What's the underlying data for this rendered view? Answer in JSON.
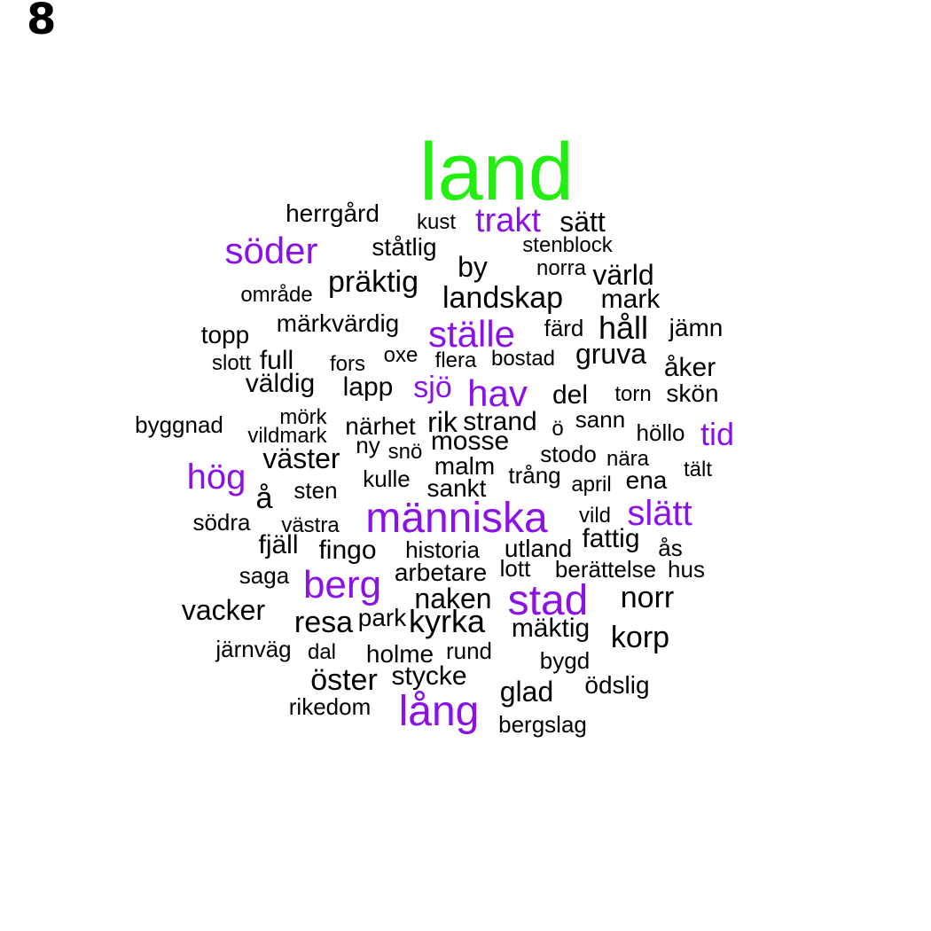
{
  "panel_label": "8",
  "colors": {
    "black": "#000000",
    "purple": "#8b12e6",
    "green": "#22ee11"
  },
  "words": [
    {
      "text": "land",
      "color": "green"
    },
    {
      "text": "herrgård",
      "color": "black"
    },
    {
      "text": "kust",
      "color": "black"
    },
    {
      "text": "trakt",
      "color": "purple"
    },
    {
      "text": "sätt",
      "color": "black"
    },
    {
      "text": "söder",
      "color": "purple"
    },
    {
      "text": "ståtlig",
      "color": "black"
    },
    {
      "text": "stenblock",
      "color": "black"
    },
    {
      "text": "by",
      "color": "black"
    },
    {
      "text": "norra",
      "color": "black"
    },
    {
      "text": "värld",
      "color": "black"
    },
    {
      "text": "område",
      "color": "black"
    },
    {
      "text": "präktig",
      "color": "black"
    },
    {
      "text": "landskap",
      "color": "black"
    },
    {
      "text": "mark",
      "color": "black"
    },
    {
      "text": "märkvärdig",
      "color": "black"
    },
    {
      "text": "ställe",
      "color": "purple"
    },
    {
      "text": "färd",
      "color": "black"
    },
    {
      "text": "håll",
      "color": "black"
    },
    {
      "text": "jämn",
      "color": "black"
    },
    {
      "text": "topp",
      "color": "black"
    },
    {
      "text": "slott",
      "color": "black"
    },
    {
      "text": "full",
      "color": "black"
    },
    {
      "text": "fors",
      "color": "black"
    },
    {
      "text": "oxe",
      "color": "black"
    },
    {
      "text": "flera",
      "color": "black"
    },
    {
      "text": "bostad",
      "color": "black"
    },
    {
      "text": "gruva",
      "color": "black"
    },
    {
      "text": "åker",
      "color": "black"
    },
    {
      "text": "väldig",
      "color": "black"
    },
    {
      "text": "lapp",
      "color": "black"
    },
    {
      "text": "sjö",
      "color": "purple"
    },
    {
      "text": "hav",
      "color": "purple"
    },
    {
      "text": "del",
      "color": "black"
    },
    {
      "text": "torn",
      "color": "black"
    },
    {
      "text": "skön",
      "color": "black"
    },
    {
      "text": "byggnad",
      "color": "black"
    },
    {
      "text": "mörk",
      "color": "black"
    },
    {
      "text": "närhet",
      "color": "black"
    },
    {
      "text": "rik",
      "color": "black"
    },
    {
      "text": "strand",
      "color": "black"
    },
    {
      "text": "ö",
      "color": "black"
    },
    {
      "text": "sann",
      "color": "black"
    },
    {
      "text": "höllo",
      "color": "black"
    },
    {
      "text": "tid",
      "color": "purple"
    },
    {
      "text": "vildmark",
      "color": "black"
    },
    {
      "text": "ny",
      "color": "black"
    },
    {
      "text": "mosse",
      "color": "black"
    },
    {
      "text": "väster",
      "color": "black"
    },
    {
      "text": "snö",
      "color": "black"
    },
    {
      "text": "stodo",
      "color": "black"
    },
    {
      "text": "nära",
      "color": "black"
    },
    {
      "text": "hög",
      "color": "purple"
    },
    {
      "text": "malm",
      "color": "black"
    },
    {
      "text": "tält",
      "color": "black"
    },
    {
      "text": "trång",
      "color": "black"
    },
    {
      "text": "kulle",
      "color": "black"
    },
    {
      "text": "ena",
      "color": "black"
    },
    {
      "text": "april",
      "color": "black"
    },
    {
      "text": "å",
      "color": "black"
    },
    {
      "text": "sten",
      "color": "black"
    },
    {
      "text": "sankt",
      "color": "black"
    },
    {
      "text": "människa",
      "color": "purple"
    },
    {
      "text": "slätt",
      "color": "purple"
    },
    {
      "text": "vild",
      "color": "black"
    },
    {
      "text": "södra",
      "color": "black"
    },
    {
      "text": "västra",
      "color": "black"
    },
    {
      "text": "fattig",
      "color": "black"
    },
    {
      "text": "fjäll",
      "color": "black"
    },
    {
      "text": "fingo",
      "color": "black"
    },
    {
      "text": "historia",
      "color": "black"
    },
    {
      "text": "utland",
      "color": "black"
    },
    {
      "text": "ås",
      "color": "black"
    },
    {
      "text": "lott",
      "color": "black"
    },
    {
      "text": "berättelse",
      "color": "black"
    },
    {
      "text": "hus",
      "color": "black"
    },
    {
      "text": "saga",
      "color": "black"
    },
    {
      "text": "arbetare",
      "color": "black"
    },
    {
      "text": "berg",
      "color": "purple"
    },
    {
      "text": "naken",
      "color": "black"
    },
    {
      "text": "stad",
      "color": "purple"
    },
    {
      "text": "norr",
      "color": "black"
    },
    {
      "text": "vacker",
      "color": "black"
    },
    {
      "text": "resa",
      "color": "black"
    },
    {
      "text": "park",
      "color": "black"
    },
    {
      "text": "kyrka",
      "color": "black"
    },
    {
      "text": "mäktig",
      "color": "black"
    },
    {
      "text": "korp",
      "color": "black"
    },
    {
      "text": "järnväg",
      "color": "black"
    },
    {
      "text": "dal",
      "color": "black"
    },
    {
      "text": "holme",
      "color": "black"
    },
    {
      "text": "rund",
      "color": "black"
    },
    {
      "text": "bygd",
      "color": "black"
    },
    {
      "text": "stycke",
      "color": "black"
    },
    {
      "text": "öster",
      "color": "black"
    },
    {
      "text": "ödslig",
      "color": "black"
    },
    {
      "text": "glad",
      "color": "black"
    },
    {
      "text": "rikedom",
      "color": "black"
    },
    {
      "text": "lång",
      "color": "purple"
    },
    {
      "text": "bergslag",
      "color": "black"
    }
  ]
}
